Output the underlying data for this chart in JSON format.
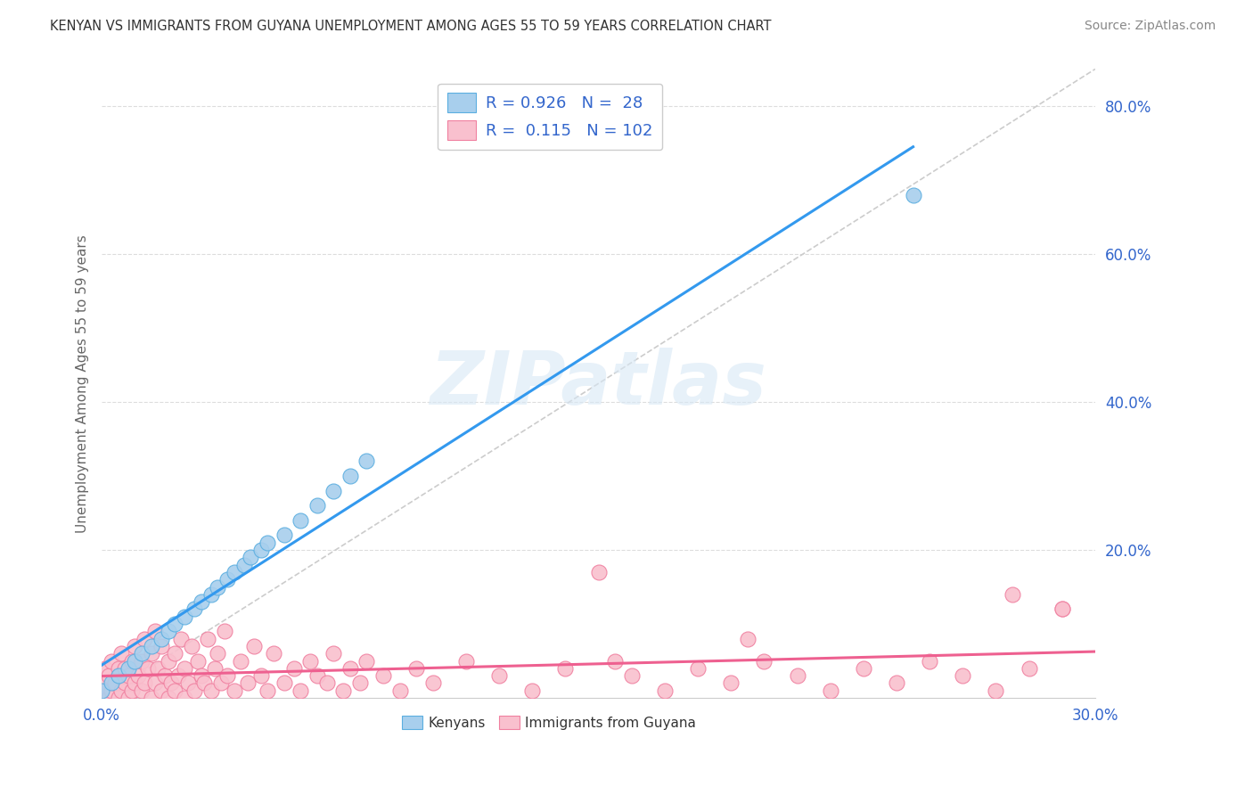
{
  "title": "KENYAN VS IMMIGRANTS FROM GUYANA UNEMPLOYMENT AMONG AGES 55 TO 59 YEARS CORRELATION CHART",
  "source": "Source: ZipAtlas.com",
  "ylabel": "Unemployment Among Ages 55 to 59 years",
  "xlabel": "",
  "xlim": [
    0.0,
    0.3
  ],
  "ylim": [
    0.0,
    0.85
  ],
  "xtick_positions": [
    0.0,
    0.3
  ],
  "xticklabels": [
    "0.0%",
    "30.0%"
  ],
  "ytick_positions": [
    0.2,
    0.4,
    0.6,
    0.8
  ],
  "yticklabels": [
    "20.0%",
    "40.0%",
    "60.0%",
    "80.0%"
  ],
  "grid_yticks": [
    0.2,
    0.4,
    0.6,
    0.8
  ],
  "kenyan_R": 0.926,
  "kenyan_N": 28,
  "guyana_R": 0.115,
  "guyana_N": 102,
  "kenyan_color": "#A8CFED",
  "guyana_color": "#F9C0CE",
  "kenyan_edge_color": "#5BAEE0",
  "guyana_edge_color": "#F080A0",
  "kenyan_line_color": "#3399EE",
  "guyana_line_color": "#EE6090",
  "legend_text_color": "#3366CC",
  "background_color": "#FFFFFF",
  "watermark": "ZIPatlas",
  "kenyan_x": [
    0.0,
    0.003,
    0.005,
    0.008,
    0.01,
    0.012,
    0.015,
    0.018,
    0.02,
    0.022,
    0.025,
    0.028,
    0.03,
    0.033,
    0.035,
    0.038,
    0.04,
    0.043,
    0.045,
    0.048,
    0.05,
    0.055,
    0.06,
    0.065,
    0.07,
    0.075,
    0.08,
    0.245
  ],
  "kenyan_y": [
    0.01,
    0.02,
    0.03,
    0.04,
    0.05,
    0.06,
    0.07,
    0.08,
    0.09,
    0.1,
    0.11,
    0.12,
    0.13,
    0.14,
    0.15,
    0.16,
    0.17,
    0.18,
    0.19,
    0.2,
    0.21,
    0.22,
    0.24,
    0.26,
    0.28,
    0.3,
    0.32,
    0.68
  ],
  "guyana_x": [
    0.0,
    0.0,
    0.001,
    0.001,
    0.002,
    0.002,
    0.003,
    0.003,
    0.004,
    0.005,
    0.005,
    0.006,
    0.006,
    0.007,
    0.007,
    0.008,
    0.008,
    0.009,
    0.009,
    0.01,
    0.01,
    0.011,
    0.012,
    0.012,
    0.013,
    0.013,
    0.014,
    0.015,
    0.015,
    0.016,
    0.016,
    0.017,
    0.018,
    0.018,
    0.019,
    0.02,
    0.02,
    0.021,
    0.022,
    0.022,
    0.023,
    0.024,
    0.025,
    0.025,
    0.026,
    0.027,
    0.028,
    0.029,
    0.03,
    0.031,
    0.032,
    0.033,
    0.034,
    0.035,
    0.036,
    0.037,
    0.038,
    0.04,
    0.042,
    0.044,
    0.046,
    0.048,
    0.05,
    0.052,
    0.055,
    0.058,
    0.06,
    0.063,
    0.065,
    0.068,
    0.07,
    0.073,
    0.075,
    0.078,
    0.08,
    0.085,
    0.09,
    0.095,
    0.1,
    0.11,
    0.12,
    0.13,
    0.14,
    0.15,
    0.16,
    0.17,
    0.18,
    0.19,
    0.2,
    0.21,
    0.22,
    0.23,
    0.24,
    0.25,
    0.26,
    0.27,
    0.28,
    0.155,
    0.275,
    0.29,
    0.195,
    0.29
  ],
  "guyana_y": [
    0.0,
    0.02,
    0.01,
    0.04,
    0.0,
    0.03,
    0.01,
    0.05,
    0.02,
    0.0,
    0.04,
    0.01,
    0.06,
    0.02,
    0.04,
    0.0,
    0.03,
    0.05,
    0.01,
    0.02,
    0.07,
    0.03,
    0.01,
    0.05,
    0.02,
    0.08,
    0.04,
    0.0,
    0.06,
    0.02,
    0.09,
    0.04,
    0.01,
    0.07,
    0.03,
    0.0,
    0.05,
    0.02,
    0.01,
    0.06,
    0.03,
    0.08,
    0.0,
    0.04,
    0.02,
    0.07,
    0.01,
    0.05,
    0.03,
    0.02,
    0.08,
    0.01,
    0.04,
    0.06,
    0.02,
    0.09,
    0.03,
    0.01,
    0.05,
    0.02,
    0.07,
    0.03,
    0.01,
    0.06,
    0.02,
    0.04,
    0.01,
    0.05,
    0.03,
    0.02,
    0.06,
    0.01,
    0.04,
    0.02,
    0.05,
    0.03,
    0.01,
    0.04,
    0.02,
    0.05,
    0.03,
    0.01,
    0.04,
    0.17,
    0.03,
    0.01,
    0.04,
    0.02,
    0.05,
    0.03,
    0.01,
    0.04,
    0.02,
    0.05,
    0.03,
    0.01,
    0.04,
    0.05,
    0.14,
    0.12,
    0.08,
    0.12
  ],
  "ref_line_color": "#CCCCCC",
  "grid_color": "#DDDDDD"
}
